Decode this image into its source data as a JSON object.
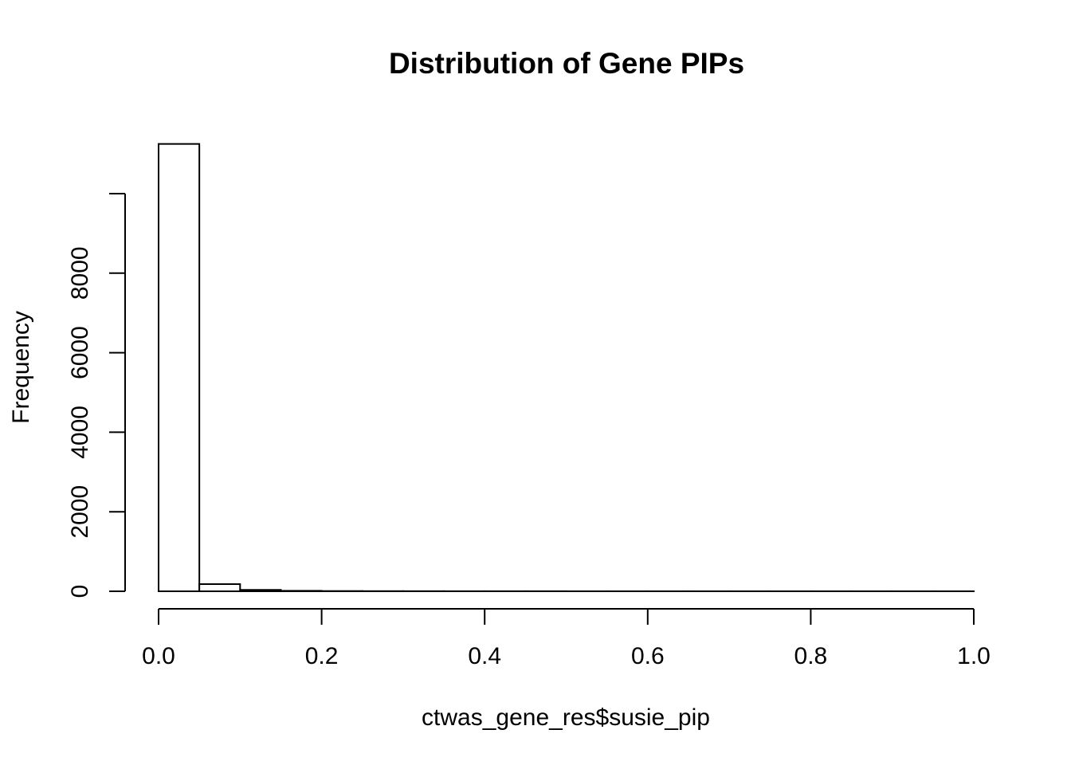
{
  "chart_data": {
    "type": "bar",
    "title": "Distribution of Gene PIPs",
    "xlabel": "ctwas_gene_res$susie_pip",
    "ylabel": "Frequency",
    "bin_edges": [
      0.0,
      0.05,
      0.1,
      0.15,
      0.2,
      0.25,
      0.3,
      0.35,
      0.4,
      0.45,
      0.5,
      0.55,
      0.6,
      0.65,
      0.7,
      0.75,
      0.8,
      0.85,
      0.9,
      0.95,
      1.0
    ],
    "values": [
      11250,
      180,
      35,
      12,
      6,
      4,
      3,
      2,
      2,
      2,
      1,
      1,
      1,
      1,
      1,
      1,
      1,
      1,
      1,
      1
    ],
    "xlim": [
      0,
      1
    ],
    "ylim": [
      0,
      10000
    ],
    "x_ticks": [
      0.0,
      0.2,
      0.4,
      0.6,
      0.8,
      1.0
    ],
    "x_tick_labels": [
      "0.0",
      "0.2",
      "0.4",
      "0.6",
      "0.8",
      "1.0"
    ],
    "y_ticks": [
      0,
      2000,
      4000,
      6000,
      8000,
      10000
    ],
    "y_tick_labels": [
      "0",
      "2000",
      "4000",
      "6000",
      "8000",
      ""
    ],
    "grid": false,
    "bar_fill": "#ffffff",
    "bar_stroke": "#000000"
  }
}
